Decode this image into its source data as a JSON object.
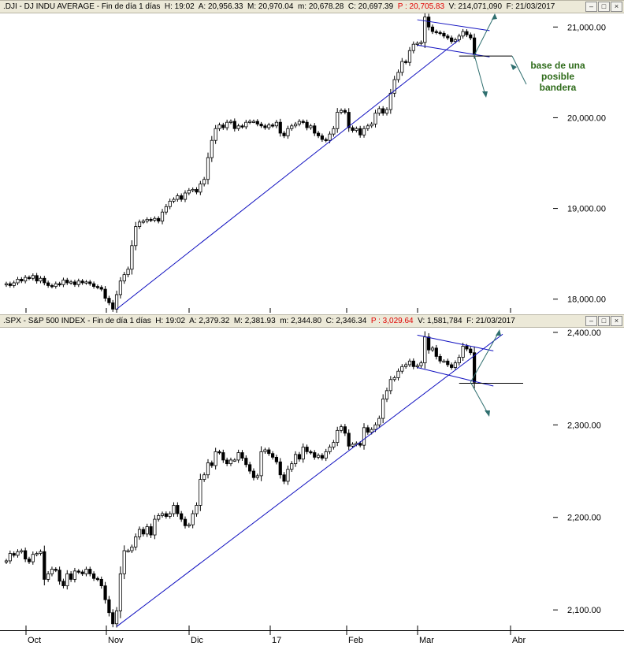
{
  "top_panel": {
    "header": {
      "symbol": ".DJI",
      "name": "DJ INDU AVERAGE",
      "period": "Fin de día 1 días",
      "high": "H: 19:02",
      "open": "A: 20,956.33",
      "max": "M: 20,970.04",
      "min": "m: 20,678.28",
      "close": "C: 20,697.39",
      "p_value": "P : 20,705.83",
      "volume": "V: 214,071,090",
      "date": "F: 21/03/2017"
    },
    "annotation": [
      "base de una",
      "posible",
      "bandera"
    ]
  },
  "bottom_panel": {
    "header": {
      "symbol": ".SPX",
      "name": "S&P 500 INDEX",
      "period": "Fin de día 1 días",
      "high": "H: 19:02",
      "open": "A: 2,379.32",
      "max": "M: 2,381.93",
      "min": "m: 2,344.80",
      "close": "C: 2,346.34",
      "p_value": "P : 3,029.64",
      "volume": "V: 1,581,784",
      "date": "F: 21/03/2017"
    }
  },
  "window_buttons": [
    "–",
    "□",
    "×"
  ],
  "colors": {
    "trendline": "#1010c0",
    "projection_arrow": "#2f6f6f",
    "annotation_text": "#2e6b1a",
    "candle": "#000000",
    "header_bg": "#ece9d8"
  },
  "chart_data": [
    {
      "type": "candlestick",
      "title": ".DJI - DJ INDU AVERAGE",
      "ylim": [
        17850,
        21150
      ],
      "yticks": [
        18000,
        19000,
        20000,
        21000
      ],
      "ytick_labels": [
        "18,000.00",
        "19,000.00",
        "20,000.00",
        "21,000.00"
      ],
      "x_labels": [
        "Oct",
        "Nov",
        "Dic",
        "17",
        "Feb",
        "Mar",
        "Abr"
      ],
      "close": [
        18170,
        18150,
        18180,
        18220,
        18200,
        18240,
        18230,
        18260,
        18200,
        18230,
        18180,
        18150,
        18140,
        18170,
        18160,
        18210,
        18180,
        18190,
        18160,
        18200,
        18180,
        18190,
        18170,
        18140,
        18130,
        18110,
        18010,
        17960,
        17890,
        18050,
        18200,
        18270,
        18330,
        18590,
        18800,
        18850,
        18860,
        18880,
        18870,
        18890,
        18860,
        18960,
        19020,
        19080,
        19100,
        19140,
        19100,
        19170,
        19200,
        19210,
        19180,
        19270,
        19320,
        19560,
        19750,
        19880,
        19920,
        19890,
        19950,
        19960,
        19880,
        19910,
        19900,
        19950,
        19960,
        19960,
        19930,
        19910,
        19890,
        19920,
        19910,
        19950,
        19830,
        19800,
        19880,
        19910,
        19930,
        19960,
        19950,
        19890,
        19910,
        19830,
        19800,
        19760,
        19750,
        19820,
        19880,
        20060,
        20080,
        20060,
        19890,
        19860,
        19880,
        19810,
        19880,
        19910,
        19930,
        20050,
        20100,
        20050,
        20090,
        20270,
        20420,
        20500,
        20620,
        20610,
        20740,
        20810,
        20820,
        20830,
        21110,
        21000,
        20950,
        20940,
        20930,
        20900,
        20880,
        20840,
        20860,
        20900,
        20950,
        20914,
        20880,
        20697
      ]
    },
    {
      "type": "candlestick",
      "title": ".SPX - S&P 500 INDEX",
      "ylim": [
        2078,
        2405
      ],
      "yticks": [
        2100,
        2200,
        2300,
        2400
      ],
      "ytick_labels": [
        "2,100.00",
        "2,200.00",
        "2,300.00",
        "2,400.00"
      ],
      "x_labels": [
        "Oct",
        "Nov",
        "Dic",
        "17",
        "Feb",
        "Mar",
        "Abr"
      ],
      "close": [
        2153,
        2161,
        2159,
        2163,
        2164,
        2155,
        2152,
        2160,
        2161,
        2163,
        2133,
        2139,
        2144,
        2143,
        2131,
        2126,
        2139,
        2133,
        2142,
        2141,
        2139,
        2144,
        2139,
        2134,
        2133,
        2126,
        2111,
        2097,
        2085,
        2099,
        2139,
        2164,
        2164,
        2168,
        2179,
        2187,
        2182,
        2190,
        2181,
        2198,
        2202,
        2204,
        2201,
        2204,
        2213,
        2204,
        2198,
        2191,
        2192,
        2204,
        2213,
        2241,
        2246,
        2259,
        2256,
        2271,
        2270,
        2262,
        2258,
        2262,
        2262,
        2270,
        2264,
        2257,
        2250,
        2243,
        2245,
        2271,
        2273,
        2269,
        2265,
        2260,
        2246,
        2239,
        2252,
        2258,
        2268,
        2263,
        2276,
        2271,
        2270,
        2265,
        2267,
        2264,
        2271,
        2276,
        2281,
        2294,
        2298,
        2291,
        2277,
        2279,
        2280,
        2278,
        2297,
        2292,
        2295,
        2300,
        2307,
        2328,
        2337,
        2349,
        2351,
        2358,
        2363,
        2365,
        2369,
        2363,
        2364,
        2367,
        2395,
        2381,
        2383,
        2374,
        2369,
        2369,
        2365,
        2362,
        2367,
        2373,
        2385,
        2382,
        2378,
        2346
      ]
    }
  ]
}
